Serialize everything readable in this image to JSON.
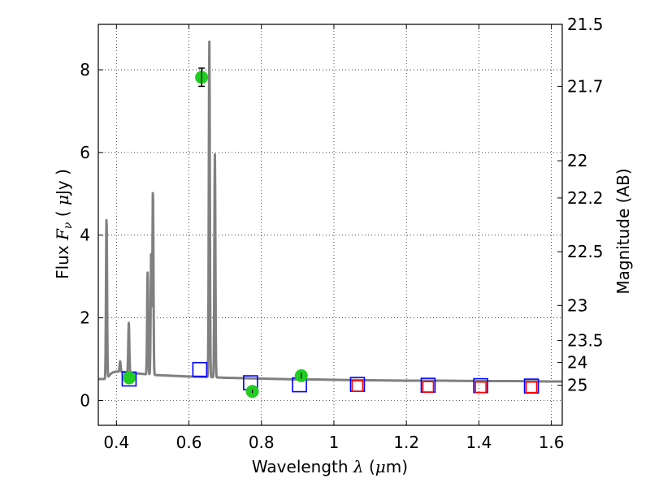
{
  "chart_data": {
    "type": "scatter",
    "xlabel": "Wavelength  λ (μm)",
    "ylabel": "Flux  F_ν  ( μJy )",
    "ylabel_right": "Magnitude (AB)",
    "xlim": [
      0.35,
      1.63
    ],
    "ylim": [
      -0.6,
      9.1
    ],
    "grid": true,
    "x_ticks": [
      0.4,
      0.6,
      0.8,
      1.0,
      1.2,
      1.4,
      1.6
    ],
    "x_tick_labels": [
      "0.4",
      "0.6",
      "0.8",
      "1",
      "1.2",
      "1.4",
      "1.6"
    ],
    "y_ticks": [
      0,
      2,
      4,
      6,
      8
    ],
    "y_tick_labels": [
      "0",
      "2",
      "4",
      "6",
      "8"
    ],
    "right_ticks": [
      {
        "label": "21.5",
        "flux": 9.1
      },
      {
        "label": "21.7",
        "flux": 7.6
      },
      {
        "label": "22",
        "flux": 5.8
      },
      {
        "label": "22.2",
        "flux": 4.9
      },
      {
        "label": "22.5",
        "flux": 3.6
      },
      {
        "label": "23",
        "flux": 2.3
      },
      {
        "label": "23.5",
        "flux": 1.45
      },
      {
        "label": "24",
        "flux": 0.92
      },
      {
        "label": "25",
        "flux": 0.37
      }
    ],
    "series": [
      {
        "kind": "line",
        "color": "#808080",
        "continuum": [
          [
            0.35,
            0.52
          ],
          [
            0.37,
            0.52
          ],
          [
            0.375,
            0.55
          ],
          [
            0.38,
            0.6
          ],
          [
            0.385,
            0.65
          ],
          [
            0.39,
            0.68
          ],
          [
            0.4,
            0.7
          ],
          [
            0.42,
            0.69
          ],
          [
            0.45,
            0.66
          ],
          [
            0.5,
            0.62
          ],
          [
            0.55,
            0.6
          ],
          [
            0.6,
            0.58
          ],
          [
            0.65,
            0.57
          ],
          [
            0.7,
            0.55
          ],
          [
            0.75,
            0.54
          ],
          [
            0.8,
            0.53
          ],
          [
            0.85,
            0.52
          ],
          [
            0.9,
            0.51
          ],
          [
            0.95,
            0.51
          ],
          [
            1.0,
            0.5
          ],
          [
            1.1,
            0.49
          ],
          [
            1.2,
            0.48
          ],
          [
            1.3,
            0.48
          ],
          [
            1.4,
            0.47
          ],
          [
            1.5,
            0.47
          ],
          [
            1.6,
            0.46
          ],
          [
            1.63,
            0.46
          ]
        ],
        "emission_lines": [
          {
            "x": 0.3727,
            "peak": 4.45
          },
          {
            "x": 0.4102,
            "peak": 0.95
          },
          {
            "x": 0.4341,
            "peak": 1.88
          },
          {
            "x": 0.4861,
            "peak": 3.1
          },
          {
            "x": 0.4959,
            "peak": 3.6
          },
          {
            "x": 0.5007,
            "peak": 5.1
          },
          {
            "x": 0.6563,
            "peak": 8.7
          },
          {
            "x": 0.6716,
            "peak": 5.95
          }
        ]
      },
      {
        "kind": "observed",
        "color": "#22cc22",
        "points": [
          {
            "x": 0.435,
            "y": 0.55,
            "err": 0.0
          },
          {
            "x": 0.635,
            "y": 7.82,
            "err": 0.22
          },
          {
            "x": 0.775,
            "y": 0.22,
            "err": 0.04
          },
          {
            "x": 0.91,
            "y": 0.6,
            "err": 0.07
          }
        ]
      },
      {
        "kind": "model_photometry",
        "color": "#0000ff",
        "points": [
          {
            "x": 0.435,
            "y": 0.52
          },
          {
            "x": 0.63,
            "y": 0.75
          },
          {
            "x": 0.77,
            "y": 0.43
          },
          {
            "x": 0.905,
            "y": 0.38
          },
          {
            "x": 1.065,
            "y": 0.39
          },
          {
            "x": 1.26,
            "y": 0.37
          },
          {
            "x": 1.405,
            "y": 0.36
          },
          {
            "x": 1.545,
            "y": 0.35
          }
        ]
      },
      {
        "kind": "model_photometry_inner",
        "color": "#ff0000",
        "points": [
          {
            "x": 1.065,
            "y": 0.35
          },
          {
            "x": 1.26,
            "y": 0.33
          },
          {
            "x": 1.405,
            "y": 0.32
          },
          {
            "x": 1.545,
            "y": 0.32
          }
        ]
      }
    ]
  }
}
